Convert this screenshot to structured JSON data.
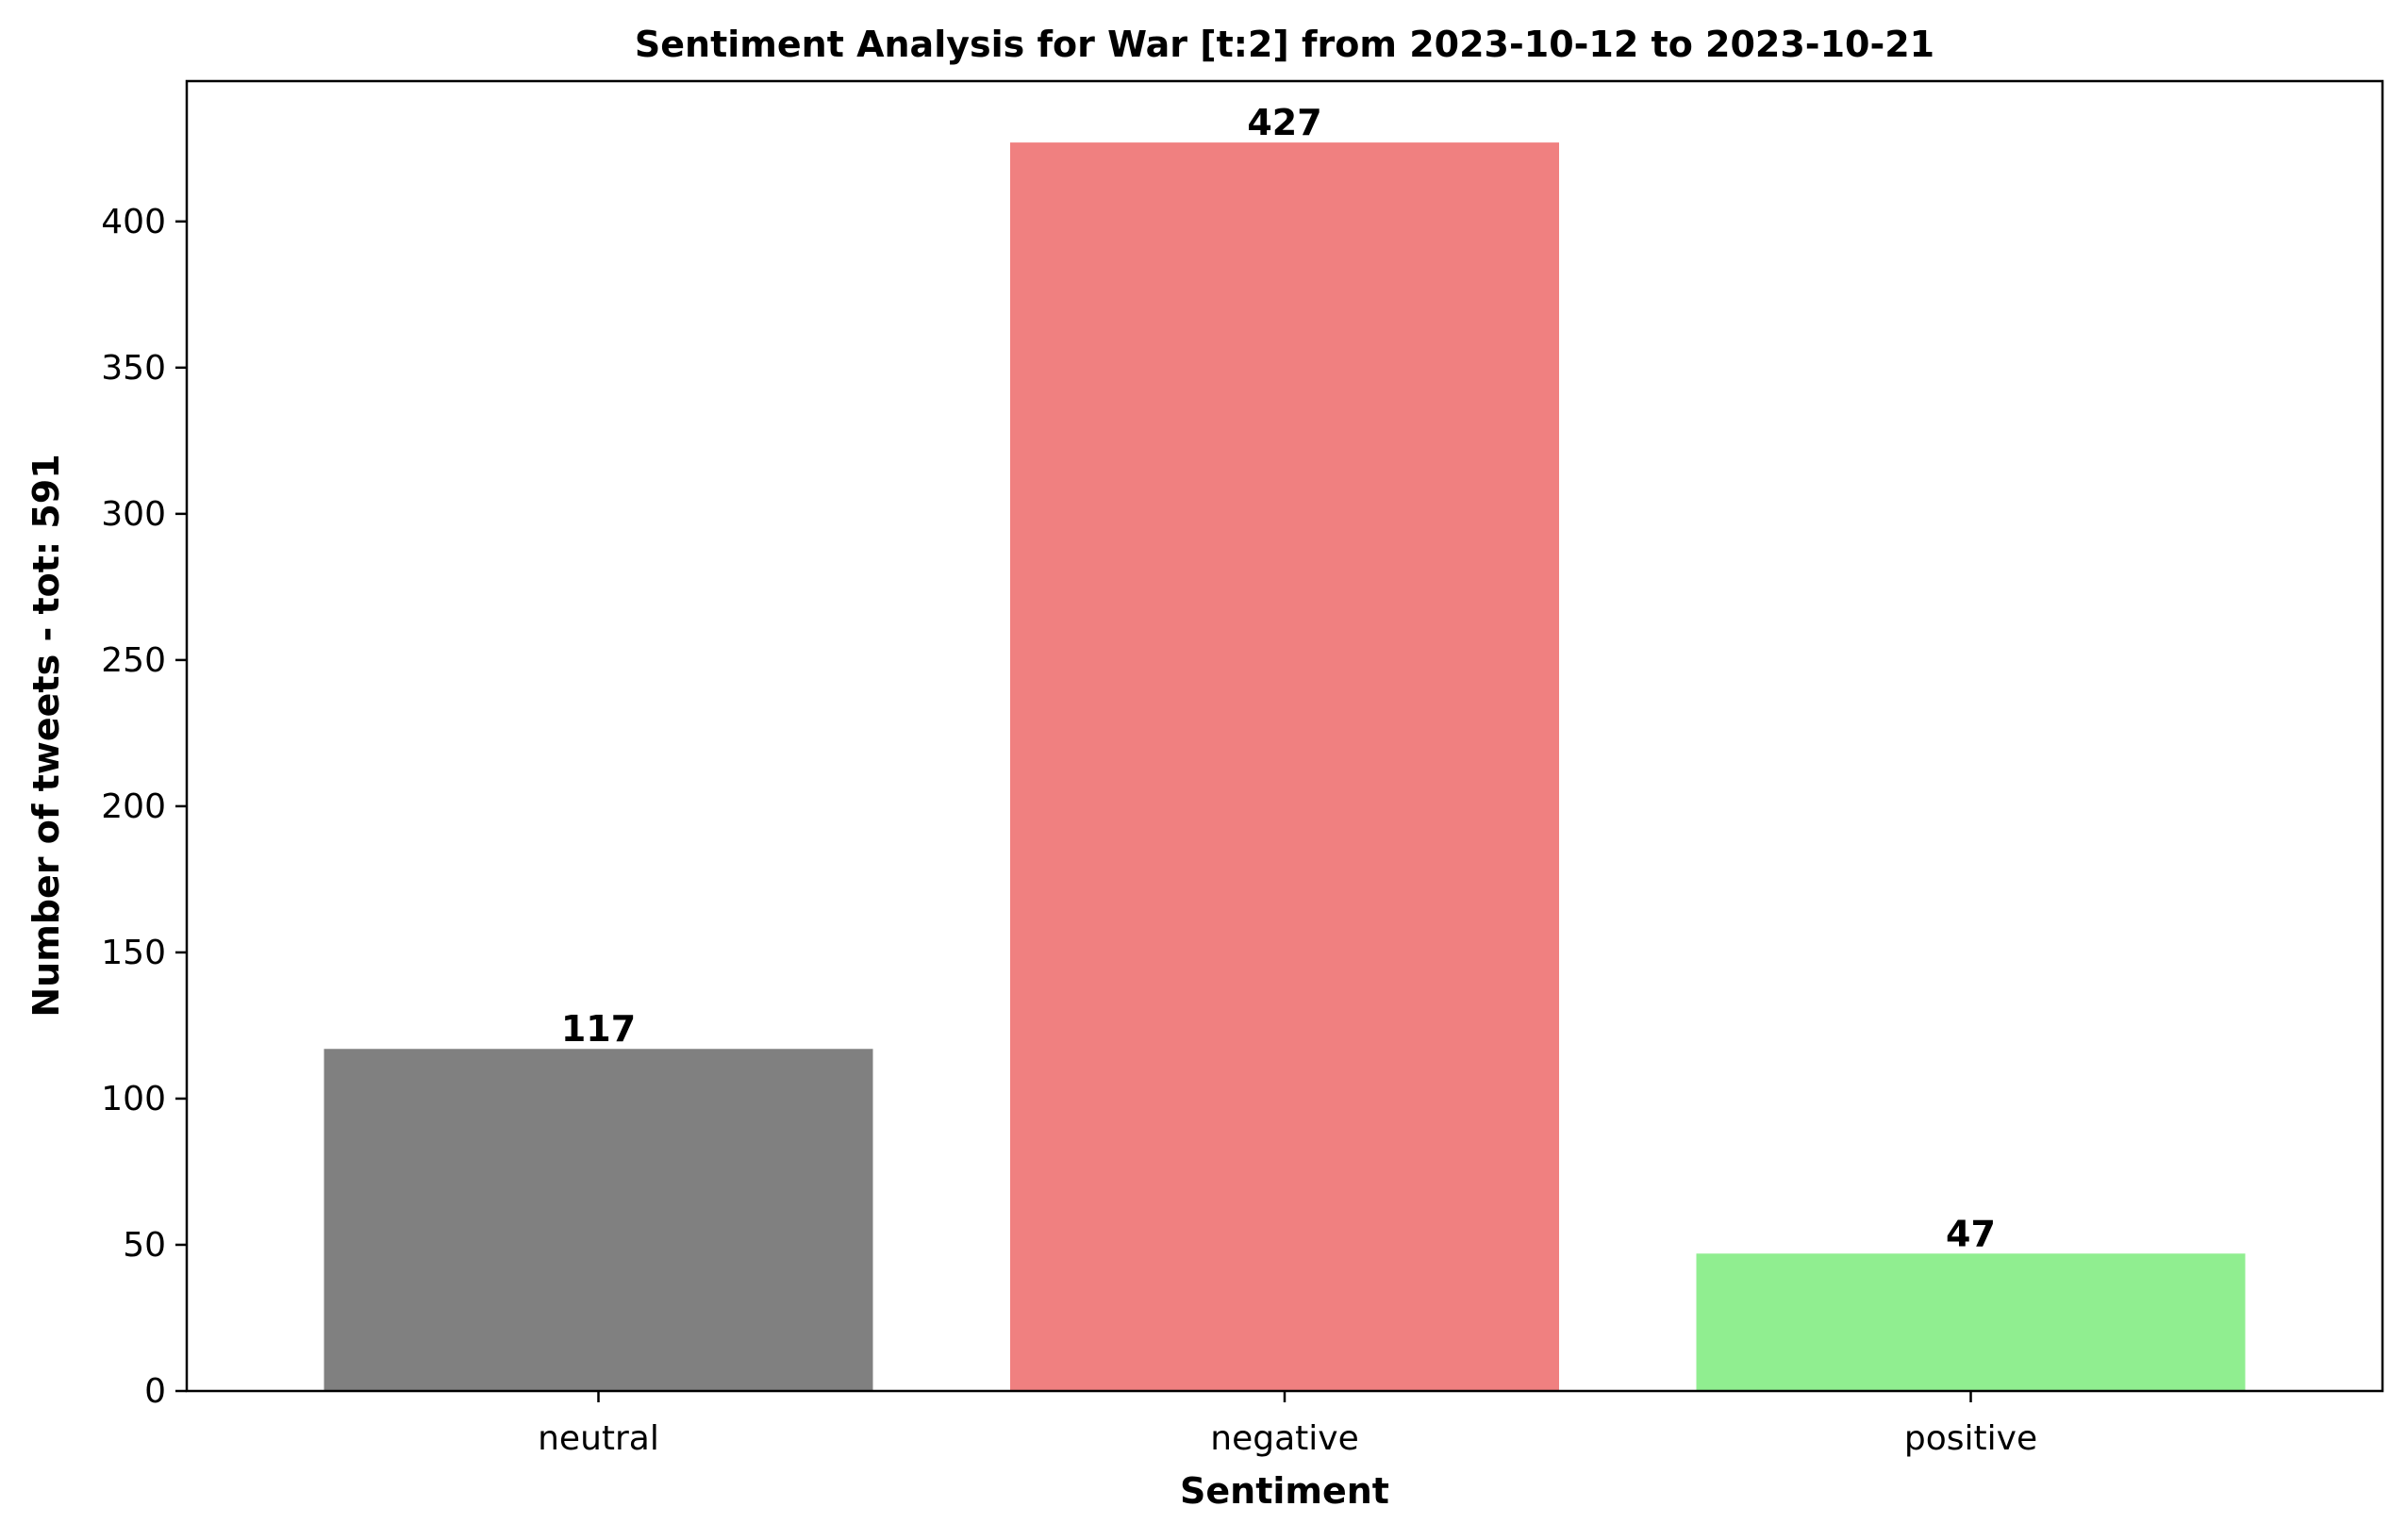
{
  "chart_data": {
    "type": "bar",
    "title": "Sentiment Analysis for War [t:2] from 2023-10-12 to 2023-10-21",
    "xlabel": "Sentiment",
    "ylabel": "Number of tweets - tot: 591",
    "categories": [
      "neutral",
      "negative",
      "positive"
    ],
    "values": [
      117,
      427,
      47
    ],
    "colors": [
      "#808080",
      "#f08080",
      "#90ee90"
    ],
    "ylim": [
      0,
      448
    ],
    "yticks": [
      0,
      50,
      100,
      150,
      200,
      250,
      300,
      350,
      400
    ],
    "grid": false,
    "legend": "none"
  }
}
